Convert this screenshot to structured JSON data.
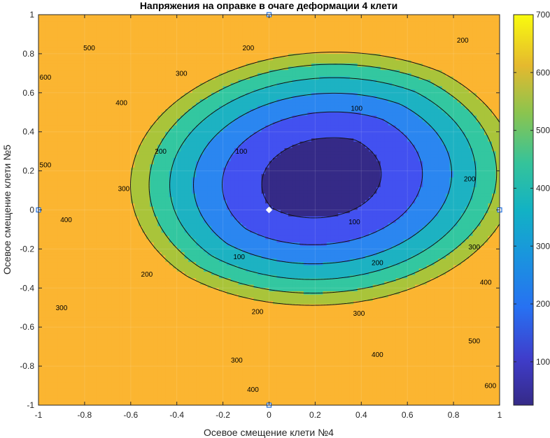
{
  "chart_data": {
    "type": "contour",
    "title": "Напряжения на оправке в очаге деформации 4 клети",
    "xlabel": "Осевое смещение клети №4",
    "ylabel": "Осевое смещение клети №5",
    "xlim": [
      -1,
      1
    ],
    "ylim": [
      -1,
      1
    ],
    "xticks": [
      "-1",
      "-0.8",
      "-0.6",
      "-0.4",
      "-0.2",
      "0",
      "0.2",
      "0.4",
      "0.6",
      "0.8",
      "1"
    ],
    "yticks": [
      "-1",
      "-0.8",
      "-0.6",
      "-0.4",
      "-0.2",
      "0",
      "0.2",
      "0.4",
      "0.6",
      "0.8",
      "1"
    ],
    "colorbar": {
      "colormap": "parula",
      "range": [
        25,
        700
      ],
      "ticks": [
        "100",
        "200",
        "300",
        "400",
        "500",
        "600",
        "700"
      ]
    },
    "contour_levels": [
      100,
      200,
      300,
      400,
      500,
      600
    ],
    "level_colors": [
      "#352a87",
      "#4251f0",
      "#2b86f0",
      "#1db2c2",
      "#33c7a0",
      "#a9c43a",
      "#fbb531"
    ],
    "contour_labels": [
      {
        "x": -0.97,
        "y": 0.68,
        "text": "600"
      },
      {
        "x": -0.78,
        "y": 0.83,
        "text": "500"
      },
      {
        "x": -0.97,
        "y": 0.23,
        "text": "500"
      },
      {
        "x": -0.64,
        "y": 0.55,
        "text": "400"
      },
      {
        "x": -0.88,
        "y": -0.05,
        "text": "400"
      },
      {
        "x": -0.38,
        "y": 0.7,
        "text": "300"
      },
      {
        "x": -0.63,
        "y": 0.11,
        "text": "300"
      },
      {
        "x": -0.9,
        "y": -0.5,
        "text": "300"
      },
      {
        "x": -0.47,
        "y": 0.3,
        "text": "200"
      },
      {
        "x": -0.09,
        "y": 0.83,
        "text": "200"
      },
      {
        "x": -0.53,
        "y": -0.33,
        "text": "200"
      },
      {
        "x": -0.05,
        "y": -0.52,
        "text": "200"
      },
      {
        "x": 0.47,
        "y": -0.27,
        "text": "200"
      },
      {
        "x": 0.87,
        "y": 0.16,
        "text": "200"
      },
      {
        "x": 0.84,
        "y": 0.87,
        "text": "200"
      },
      {
        "x": -0.12,
        "y": 0.3,
        "text": "100"
      },
      {
        "x": 0.38,
        "y": 0.52,
        "text": "100"
      },
      {
        "x": 0.37,
        "y": -0.06,
        "text": "100"
      },
      {
        "x": -0.13,
        "y": -0.24,
        "text": "100"
      },
      {
        "x": -0.14,
        "y": -0.77,
        "text": "300"
      },
      {
        "x": 0.39,
        "y": -0.53,
        "text": "300"
      },
      {
        "x": 0.89,
        "y": -0.19,
        "text": "300"
      },
      {
        "x": -0.07,
        "y": -0.92,
        "text": "400"
      },
      {
        "x": 0.47,
        "y": -0.74,
        "text": "400"
      },
      {
        "x": 0.94,
        "y": -0.37,
        "text": "400"
      },
      {
        "x": 0.89,
        "y": -0.67,
        "text": "500"
      },
      {
        "x": 0.96,
        "y": -0.9,
        "text": "600"
      }
    ],
    "markers": [
      {
        "x": 0,
        "y": 0,
        "shape": "diamond",
        "color": "#ffffff"
      },
      {
        "x": 0,
        "y": 1,
        "shape": "square",
        "color": "#1f6fdc"
      },
      {
        "x": 0,
        "y": -1,
        "shape": "square",
        "color": "#1f6fdc"
      },
      {
        "x": -1,
        "y": 0,
        "shape": "square",
        "color": "#1f6fdc"
      },
      {
        "x": 1,
        "y": 0,
        "shape": "square",
        "color": "#1f6fdc"
      }
    ]
  }
}
